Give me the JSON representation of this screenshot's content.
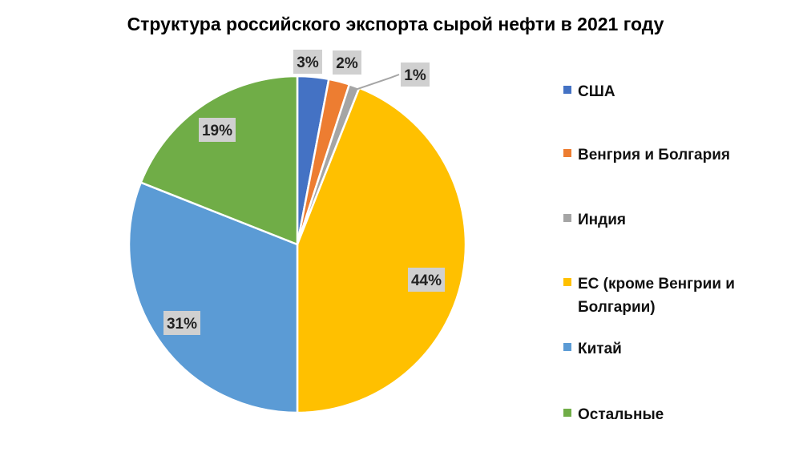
{
  "chart_data": {
    "type": "pie",
    "title": "Структура российского экспорта сырой нефти в 2021 году",
    "slices": [
      {
        "name": "США",
        "value": 3,
        "label": "3%",
        "color": "#4472C4"
      },
      {
        "name": "Венгрия и Болгария",
        "value": 2,
        "label": "2%",
        "color": "#ED7D31"
      },
      {
        "name": "Индия",
        "value": 1,
        "label": "1%",
        "color": "#A5A5A5"
      },
      {
        "name": "ЕС (кроме Венгрии и Болгарии)",
        "value": 44,
        "label": "44%",
        "color": "#FFC000"
      },
      {
        "name": "Китай",
        "value": 31,
        "label": "31%",
        "color": "#5B9BD5"
      },
      {
        "name": "Остальные",
        "value": 19,
        "label": "19%",
        "color": "#70AD47"
      }
    ],
    "legend_position": "right",
    "label_background": "#D0D0D0"
  }
}
